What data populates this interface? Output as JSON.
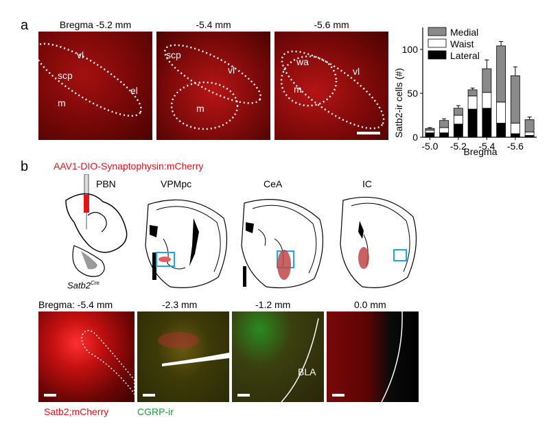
{
  "panel_a": {
    "letter": "a",
    "headers": [
      "Bregma -5.2 mm",
      "-5.4 mm",
      "-5.6 mm"
    ],
    "img1_labels": [
      "vl",
      "scp",
      "el",
      "m"
    ],
    "img2_labels": [
      "scp",
      "vl",
      "m"
    ],
    "img3_labels": [
      "wa",
      "vl",
      "m"
    ]
  },
  "chart_data": {
    "type": "bar",
    "stacked": true,
    "ylabel": "Satb2-ir cells (#)",
    "xlabel": "Bregma",
    "ylim": [
      0,
      125
    ],
    "yticks": [
      0,
      50,
      100
    ],
    "x": [
      -5.0,
      -5.1,
      -5.2,
      -5.3,
      -5.4,
      -5.5,
      -5.6,
      -5.7
    ],
    "xtick_labels": [
      "-5.0",
      "-5.2",
      "-5.4",
      "-5.6"
    ],
    "xtick_positions": [
      -5.0,
      -5.2,
      -5.4,
      -5.6
    ],
    "series": [
      {
        "name": "Lateral",
        "color": "#000000",
        "values": [
          5,
          5,
          15,
          32,
          33,
          16,
          4,
          2
        ]
      },
      {
        "name": "Waist",
        "color": "#ffffff",
        "values": [
          3,
          6,
          10,
          15,
          18,
          24,
          12,
          4
        ]
      },
      {
        "name": "Medial",
        "color": "#8a8a8a",
        "values": [
          2,
          8,
          8,
          7,
          27,
          64,
          54,
          14
        ]
      }
    ],
    "errors": [
      1,
      2,
      3,
      2,
      10,
      5,
      10,
      3
    ],
    "legend": "top-right"
  },
  "panel_b": {
    "letter": "b",
    "virus_label": "AAV1-DIO-Synaptophysin:mCherry",
    "atlas_labels": [
      "PBN",
      "VPMpc",
      "CeA",
      "IC"
    ],
    "mouse_label": "Satb2",
    "mouse_label_sup": "Cre",
    "bregma_labels": [
      "Bregma: -5.4 mm",
      "-2.3 mm",
      "-1.2 mm",
      "0.0 mm"
    ],
    "bla_label": "BLA",
    "legend_red": "Satb2;mCherry",
    "legend_green": "CGRP-ir"
  }
}
